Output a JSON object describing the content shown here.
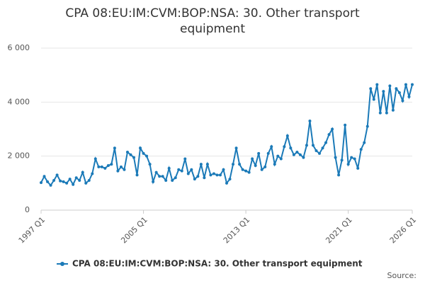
{
  "chart_data": {
    "type": "line",
    "title": "CPA 08:EU:IM:CVM:BOP:NSA: 30. Other transport equipment",
    "categories": [
      "1997 Q1",
      null,
      null,
      null,
      null,
      null,
      null,
      null,
      null,
      null,
      null,
      null,
      null,
      null,
      null,
      null,
      null,
      null,
      null,
      null,
      null,
      null,
      null,
      null,
      null,
      null,
      null,
      null,
      null,
      null,
      null,
      null,
      "2005 Q1",
      null,
      null,
      null,
      null,
      null,
      null,
      null,
      null,
      null,
      null,
      null,
      null,
      null,
      null,
      null,
      null,
      null,
      null,
      null,
      null,
      null,
      null,
      null,
      null,
      null,
      null,
      null,
      null,
      null,
      null,
      null,
      "2013 Q1",
      null,
      null,
      null,
      null,
      null,
      null,
      null,
      null,
      null,
      null,
      null,
      null,
      null,
      null,
      null,
      null,
      null,
      null,
      null,
      null,
      null,
      null,
      null,
      null,
      null,
      null,
      null,
      null,
      null,
      null,
      null,
      "2021 Q1",
      null,
      null,
      null,
      null,
      null,
      null,
      null,
      null,
      null,
      null,
      null,
      null,
      null,
      null,
      null,
      null,
      null,
      null,
      null,
      "2026 Q1"
    ],
    "series": [
      {
        "name": "CPA 08:EU:IM:CVM:BOP:NSA: 30. Other transport equipment",
        "color": "#1b7ab8",
        "values": [
          1020,
          1250,
          1050,
          920,
          1100,
          1300,
          1080,
          1050,
          1000,
          1150,
          950,
          1200,
          1100,
          1400,
          1000,
          1100,
          1350,
          1900,
          1600,
          1600,
          1550,
          1650,
          1700,
          2300,
          1450,
          1600,
          1500,
          2150,
          2050,
          1950,
          1300,
          2300,
          2100,
          2000,
          1700,
          1050,
          1400,
          1250,
          1250,
          1100,
          1550,
          1100,
          1200,
          1500,
          1450,
          1900,
          1350,
          1500,
          1150,
          1250,
          1700,
          1200,
          1700,
          1300,
          1350,
          1300,
          1300,
          1500,
          1000,
          1150,
          1700,
          2300,
          1700,
          1500,
          1450,
          1400,
          1900,
          1650,
          2100,
          1500,
          1600,
          2100,
          2350,
          1700,
          2000,
          1900,
          2350,
          2750,
          2300,
          2050,
          2150,
          2050,
          1950,
          2400,
          3300,
          2400,
          2200,
          2100,
          2300,
          2500,
          2800,
          3000,
          1950,
          1300,
          1850,
          3150,
          1700,
          1950,
          1900,
          1550,
          2250,
          2500,
          3100,
          4500,
          4100,
          4650,
          3600,
          4400,
          3600,
          4600,
          3700,
          4500,
          4350,
          4050,
          4650,
          4200,
          4650
        ]
      }
    ],
    "ylim": [
      0,
      6000
    ],
    "yticks": [
      0,
      {
        "value": 2000,
        "label": "2 000"
      },
      {
        "value": 4000,
        "label": "4 000"
      },
      {
        "value": 6000,
        "label": "6 000"
      }
    ],
    "grid": true,
    "source": "Source:"
  }
}
